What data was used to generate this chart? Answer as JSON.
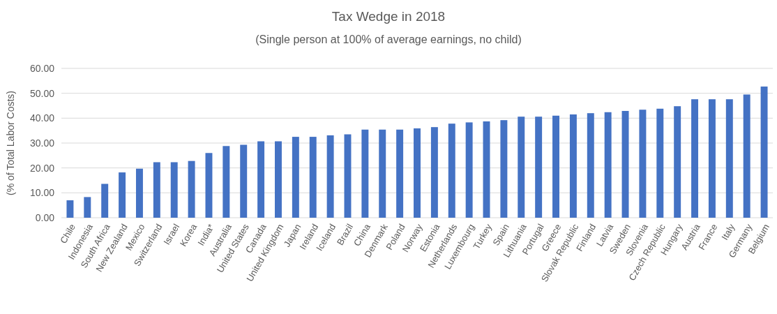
{
  "chart_data": {
    "type": "bar",
    "title": "Tax Wedge in 2018",
    "subtitle": "(Single person at 100% of average earnings, no child)",
    "ylabel": "(% of Total Labor Costs)",
    "categories": [
      "Chile",
      "Indonesia",
      "South Africa",
      "New Zealand",
      "Mexico",
      "Switzerland",
      "Israel",
      "Korea",
      "India*",
      "Australia",
      "United States",
      "Canada",
      "United Kingdom",
      "Japan",
      "Ireland",
      "Iceland",
      "Brazil",
      "China",
      "Denmark",
      "Poland",
      "Norway",
      "Estonia",
      "Netherlands",
      "Luxembourg",
      "Turkey",
      "Spain",
      "Lithuania",
      "Portugal",
      "Greece",
      "Slovak Republic",
      "Finland",
      "Latvia",
      "Sweden",
      "Slovenia",
      "Czech Republic",
      "Hungary",
      "Austria",
      "France",
      "Italy",
      "Germany",
      "Belgium"
    ],
    "values": [
      7,
      8.3,
      13.6,
      18.2,
      19.7,
      22.3,
      22.3,
      22.8,
      26,
      28.8,
      29.3,
      30.7,
      30.7,
      32.5,
      32.5,
      33.1,
      33.5,
      35.4,
      35.4,
      35.4,
      35.9,
      36.4,
      37.8,
      38.3,
      38.7,
      39.2,
      40.6,
      40.6,
      41,
      41.5,
      42,
      42.4,
      42.9,
      43.4,
      43.8,
      44.8,
      47.6,
      47.6,
      47.6,
      49.5,
      52.7
    ],
    "color": "#4472c4",
    "ylim": [
      0,
      60
    ],
    "yticks": [
      {
        "value": 0,
        "label": "0.00"
      },
      {
        "value": 10,
        "label": "10.00"
      },
      {
        "value": 20,
        "label": "20.00"
      },
      {
        "value": 30,
        "label": "30.00"
      },
      {
        "value": 40,
        "label": "40.00"
      },
      {
        "value": 50,
        "label": "50.00"
      },
      {
        "value": 60,
        "label": "60.00"
      }
    ],
    "grid": "y"
  }
}
